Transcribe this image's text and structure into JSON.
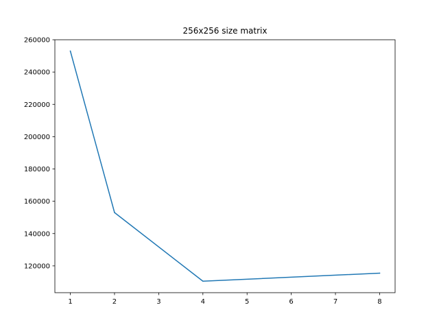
{
  "chart_data": {
    "type": "line",
    "title": "256x256 size matrix",
    "xlabel": "",
    "ylabel": "",
    "x": [
      1,
      2,
      4,
      8
    ],
    "series": [
      {
        "values": [
          253000,
          153000,
          110500,
          115500
        ],
        "color": "#1f77b4"
      }
    ],
    "xlim": [
      0.65,
      8.35
    ],
    "ylim": [
      103400,
      260000
    ],
    "xticks": [
      1,
      2,
      3,
      4,
      5,
      6,
      7,
      8
    ],
    "xtick_labels": [
      "1",
      "2",
      "3",
      "4",
      "5",
      "6",
      "7",
      "8"
    ],
    "yticks": [
      120000,
      140000,
      160000,
      180000,
      200000,
      220000,
      240000,
      260000
    ],
    "ytick_labels": [
      "120000",
      "140000",
      "160000",
      "180000",
      "200000",
      "220000",
      "240000",
      "260000"
    ],
    "grid": false,
    "legend": "none"
  }
}
